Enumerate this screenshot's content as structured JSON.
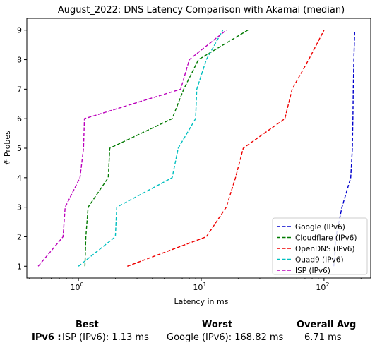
{
  "chart_data": {
    "type": "line",
    "title": "August_2022: DNS Latency Comparison with Akamai (median)",
    "xlabel": "Latency in ms",
    "ylabel": "# Probes",
    "xscale": "log",
    "xlim": [
      0.38,
      240
    ],
    "ylim": [
      0.6,
      9.4
    ],
    "xticks": [
      {
        "value": 1,
        "label": "10^0"
      },
      {
        "value": 10,
        "label": "10^1"
      },
      {
        "value": 100,
        "label": "10^2"
      }
    ],
    "yticks": [
      1,
      2,
      3,
      4,
      5,
      6,
      7,
      8,
      9
    ],
    "grid": false,
    "legend": "lower-right",
    "series": [
      {
        "name": "Google (IPv6)",
        "color": "#0000cc",
        "dash": "dashed",
        "points": [
          [
            120,
            1
          ],
          [
            125,
            2
          ],
          [
            140,
            3
          ],
          [
            165,
            4
          ],
          [
            170,
            5
          ],
          [
            172,
            6
          ],
          [
            173,
            7
          ],
          [
            175,
            8
          ],
          [
            178,
            9
          ]
        ]
      },
      {
        "name": "Cloudflare (IPv6)",
        "color": "#007a00",
        "dash": "dashed",
        "points": [
          [
            1.13,
            1
          ],
          [
            1.15,
            2
          ],
          [
            1.2,
            3
          ],
          [
            1.75,
            4
          ],
          [
            1.8,
            5
          ],
          [
            5.8,
            6
          ],
          [
            7.2,
            7
          ],
          [
            9.5,
            8
          ],
          [
            24,
            9
          ]
        ]
      },
      {
        "name": "OpenDNS (IPv6)",
        "color": "#ee0000",
        "dash": "dashed",
        "points": [
          [
            2.5,
            1
          ],
          [
            11,
            2
          ],
          [
            16,
            3
          ],
          [
            19,
            4
          ],
          [
            22,
            5
          ],
          [
            48,
            6
          ],
          [
            55,
            7
          ],
          [
            75,
            8
          ],
          [
            100,
            9
          ]
        ]
      },
      {
        "name": "Quad9 (IPv6)",
        "color": "#00bfbf",
        "dash": "dashed",
        "points": [
          [
            1.0,
            1
          ],
          [
            2.0,
            2
          ],
          [
            2.05,
            3
          ],
          [
            5.8,
            4
          ],
          [
            6.5,
            5
          ],
          [
            9.0,
            6
          ],
          [
            9.2,
            7
          ],
          [
            11,
            8
          ],
          [
            15,
            9
          ]
        ]
      },
      {
        "name": "ISP (IPv6)",
        "color": "#bb00bb",
        "dash": "dashed",
        "points": [
          [
            0.47,
            1
          ],
          [
            0.75,
            2
          ],
          [
            0.78,
            3
          ],
          [
            1.03,
            4
          ],
          [
            1.1,
            5
          ],
          [
            1.12,
            6
          ],
          [
            6.8,
            7
          ],
          [
            8.0,
            8
          ],
          [
            16,
            9
          ]
        ]
      }
    ]
  },
  "summary": {
    "headers": {
      "best": "Best",
      "worst": "Worst",
      "avg": "Overall Avg"
    },
    "row_label": "IPv6 :",
    "best": "ISP (IPv6): 1.13 ms",
    "worst": "Google (IPv6): 168.82 ms",
    "avg": "6.71 ms"
  }
}
